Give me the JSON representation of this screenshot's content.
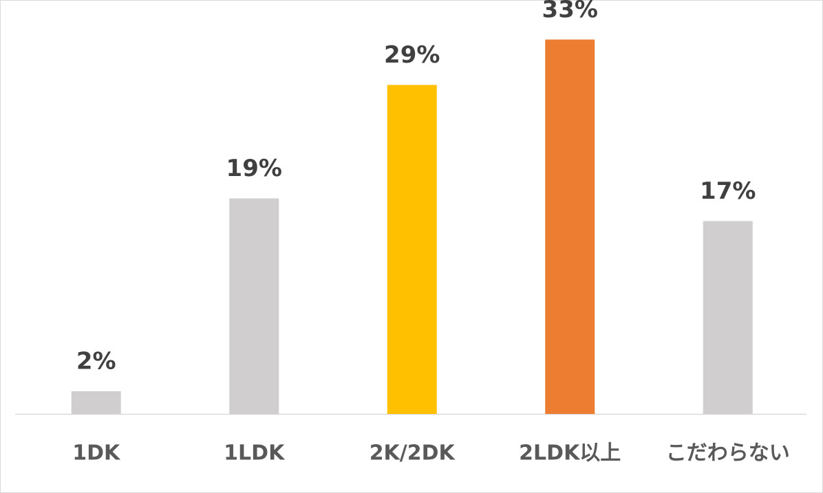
{
  "chart_data": {
    "type": "bar",
    "categories": [
      "1DK",
      "1LDK",
      "2K/2DK",
      "2LDK以上",
      "こだわらない"
    ],
    "values": [
      2,
      19,
      29,
      33,
      17
    ],
    "value_labels": [
      "2%",
      "19%",
      "29%",
      "33%",
      "17%"
    ],
    "colors": [
      "#d0cece",
      "#d0cece",
      "#ffc000",
      "#ed7d31",
      "#d0cece"
    ]
  }
}
